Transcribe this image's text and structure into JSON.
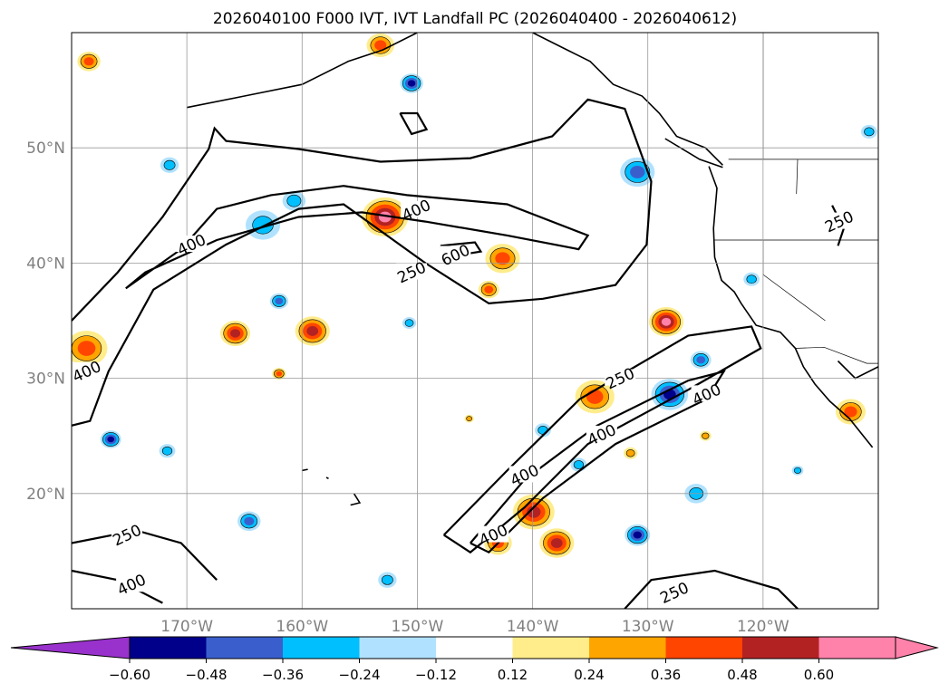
{
  "chart_data": {
    "type": "heatmap",
    "title": "2026040100 F000 IVT, IVT Landfall PC (2026040400 - 2026040612)",
    "xlim": [
      -180,
      -110
    ],
    "ylim": [
      10,
      60
    ],
    "x_ticks": [
      {
        "v": -170,
        "label": "170°W"
      },
      {
        "v": -160,
        "label": "160°W"
      },
      {
        "v": -150,
        "label": "150°W"
      },
      {
        "v": -140,
        "label": "140°W"
      },
      {
        "v": -130,
        "label": "130°W"
      },
      {
        "v": -120,
        "label": "120°W"
      }
    ],
    "y_ticks": [
      {
        "v": 50,
        "label": "50°N"
      },
      {
        "v": 40,
        "label": "40°N"
      },
      {
        "v": 30,
        "label": "30°N"
      },
      {
        "v": 20,
        "label": "20°N"
      }
    ],
    "grid": true,
    "colorbar": {
      "levels": [
        "-0.60",
        "-0.48",
        "-0.36",
        "-0.24",
        "-0.12",
        "0.12",
        "0.24",
        "0.36",
        "0.48",
        "0.60"
      ],
      "colors": [
        "#9932cc",
        "#00008b",
        "#3a5fcd",
        "#00bfff",
        "#b0e2ff",
        "#ffffff",
        "#ffec8b",
        "#ffa500",
        "#ff4500",
        "#b22222",
        "#ff82ab"
      ]
    },
    "pc_blobs": [
      {
        "lon": -165.8,
        "lat": 33.9,
        "v": 0.5,
        "r": 1.3
      },
      {
        "lon": -159.1,
        "lat": 34.1,
        "v": 0.5,
        "r": 1.5
      },
      {
        "lon": -152.8,
        "lat": 44,
        "v": 0.6,
        "r": 2
      },
      {
        "lon": -142.6,
        "lat": 40.4,
        "v": 0.45,
        "r": 1.5
      },
      {
        "lon": -143.8,
        "lat": 37.7,
        "v": 0.4,
        "r": 0.9
      },
      {
        "lon": -178.7,
        "lat": 32.6,
        "v": 0.45,
        "r": 1.8
      },
      {
        "lon": -128.4,
        "lat": 34.9,
        "v": 0.6,
        "r": 1.5
      },
      {
        "lon": -134.6,
        "lat": 28.4,
        "v": 0.45,
        "r": 1.7
      },
      {
        "lon": -139.9,
        "lat": 18.4,
        "v": 0.5,
        "r": 1.8
      },
      {
        "lon": -137.9,
        "lat": 15.7,
        "v": 0.5,
        "r": 1.5
      },
      {
        "lon": -143,
        "lat": 15.7,
        "v": 0.4,
        "r": 1.2
      },
      {
        "lon": -112.4,
        "lat": 27.1,
        "v": 0.4,
        "r": 1.3
      },
      {
        "lon": -178.5,
        "lat": 57.5,
        "v": 0.4,
        "r": 1
      },
      {
        "lon": -153.2,
        "lat": 58.9,
        "v": 0.4,
        "r": 1.2
      },
      {
        "lon": -162,
        "lat": 30.4,
        "v": 0.4,
        "r": 0.6
      },
      {
        "lon": -145.5,
        "lat": 26.5,
        "v": 0.3,
        "r": 0.4
      },
      {
        "lon": -125,
        "lat": 25,
        "v": 0.35,
        "r": 0.5
      },
      {
        "lon": -131.5,
        "lat": 23.5,
        "v": 0.35,
        "r": 0.6
      },
      {
        "lon": -150.5,
        "lat": 55.6,
        "v": -0.55,
        "r": 1
      },
      {
        "lon": -130.9,
        "lat": 47.9,
        "v": -0.4,
        "r": 1.5
      },
      {
        "lon": -128.1,
        "lat": 28.6,
        "v": -0.5,
        "r": 1.6
      },
      {
        "lon": -130.9,
        "lat": 16.4,
        "v": -0.5,
        "r": 1.1
      },
      {
        "lon": -176.6,
        "lat": 24.7,
        "v": -0.5,
        "r": 0.9
      },
      {
        "lon": -162,
        "lat": 36.7,
        "v": -0.4,
        "r": 0.8
      },
      {
        "lon": -163.4,
        "lat": 43.3,
        "v": -0.35,
        "r": 1.5
      },
      {
        "lon": -164.6,
        "lat": 17.6,
        "v": -0.4,
        "r": 1
      },
      {
        "lon": -150.7,
        "lat": 34.8,
        "v": -0.3,
        "r": 0.6
      },
      {
        "lon": -171.7,
        "lat": 23.7,
        "v": -0.35,
        "r": 0.7
      },
      {
        "lon": -125.4,
        "lat": 31.6,
        "v": -0.4,
        "r": 0.9
      },
      {
        "lon": -121,
        "lat": 38.6,
        "v": -0.3,
        "r": 0.7
      },
      {
        "lon": -110.8,
        "lat": 51.4,
        "v": -0.3,
        "r": 0.7
      },
      {
        "lon": -152.6,
        "lat": 12.5,
        "v": -0.3,
        "r": 0.8
      },
      {
        "lon": -160.7,
        "lat": 45.4,
        "v": -0.25,
        "r": 1
      },
      {
        "lon": -125.8,
        "lat": 20,
        "v": -0.3,
        "r": 1
      },
      {
        "lon": -139.1,
        "lat": 25.5,
        "v": -0.3,
        "r": 0.7
      },
      {
        "lon": -171.5,
        "lat": 48.5,
        "v": -0.3,
        "r": 0.8
      },
      {
        "lon": -136,
        "lat": 22.5,
        "v": -0.35,
        "r": 0.7
      },
      {
        "lon": -117,
        "lat": 22,
        "v": -0.3,
        "r": 0.5
      }
    ],
    "ivt_contours": [
      {
        "level": 250,
        "pts": [
          [
            -180,
            35
          ],
          [
            -176,
            39.2
          ],
          [
            -172.1,
            44
          ],
          [
            -168.1,
            49.9
          ],
          [
            -167.6,
            51.7
          ],
          [
            -166.6,
            50.6
          ],
          [
            -160.3,
            49.9
          ],
          [
            -153.2,
            48.8
          ],
          [
            -145.4,
            49.1
          ],
          [
            -138.3,
            51
          ],
          [
            -135.2,
            54.2
          ],
          [
            -132,
            53.4
          ],
          [
            -129.7,
            47.1
          ],
          [
            -130.1,
            41.6
          ],
          [
            -132.8,
            38.1
          ],
          [
            -139.1,
            36.9
          ],
          [
            -143.8,
            36.5
          ],
          [
            -149.3,
            40
          ],
          [
            -156.4,
            45.1
          ],
          [
            -160.3,
            44.7
          ],
          [
            -166.6,
            41.6
          ],
          [
            -172.9,
            37.7
          ],
          [
            -176.8,
            30.6
          ],
          [
            -178.4,
            26.3
          ],
          [
            -180,
            25.9
          ]
        ]
      },
      {
        "level": 400,
        "pts": [
          [
            -175.3,
            37.8
          ],
          [
            -170.5,
            41.2
          ],
          [
            -167.4,
            44.7
          ],
          [
            -162.7,
            45.9
          ],
          [
            -156.4,
            46.7
          ],
          [
            -150.9,
            45.9
          ],
          [
            -142.2,
            45.1
          ],
          [
            -135.2,
            42.4
          ],
          [
            -136,
            41.2
          ],
          [
            -142.2,
            42.4
          ],
          [
            -149.3,
            43.6
          ],
          [
            -154.8,
            44.4
          ],
          [
            -160.3,
            44
          ],
          [
            -167.4,
            42
          ],
          [
            -173.6,
            39.2
          ],
          [
            -175.3,
            37.8
          ]
        ]
      },
      {
        "level": 600,
        "pts": [
          [
            -148,
            41.5
          ],
          [
            -145,
            41.8
          ],
          [
            -144.5,
            41
          ],
          [
            -147,
            40.6
          ],
          [
            -148,
            41.5
          ]
        ]
      },
      {
        "level": 250,
        "pts": [
          [
            -147.7,
            16.4
          ],
          [
            -142.2,
            22
          ],
          [
            -135.9,
            28.2
          ],
          [
            -126.5,
            33.7
          ],
          [
            -121,
            34.5
          ],
          [
            -120.2,
            32.6
          ],
          [
            -126.5,
            29
          ],
          [
            -135.2,
            24.3
          ],
          [
            -140.7,
            18.8
          ],
          [
            -145.4,
            14.9
          ],
          [
            -147.7,
            16.4
          ]
        ]
      },
      {
        "level": 400,
        "pts": [
          [
            -145.4,
            15.7
          ],
          [
            -140.7,
            21.2
          ],
          [
            -134.4,
            25.9
          ],
          [
            -126.5,
            29.8
          ],
          [
            -123.4,
            30.6
          ],
          [
            -124.9,
            28.2
          ],
          [
            -132.8,
            24.3
          ],
          [
            -139.1,
            19.6
          ],
          [
            -143.8,
            14.9
          ],
          [
            -145.4,
            15.7
          ]
        ]
      },
      {
        "level": 250,
        "pts": [
          [
            -180,
            15.7
          ],
          [
            -174.4,
            16.8
          ],
          [
            -170.5,
            15.7
          ],
          [
            -167.4,
            12.5
          ]
        ]
      },
      {
        "level": 400,
        "pts": [
          [
            -180,
            13.3
          ],
          [
            -176,
            12.5
          ],
          [
            -172.1,
            10.5
          ]
        ]
      },
      {
        "level": 250,
        "pts": [
          [
            -132,
            10
          ],
          [
            -129.7,
            12.5
          ],
          [
            -124.2,
            13.3
          ],
          [
            -118.7,
            11.7
          ],
          [
            -117,
            10
          ]
        ]
      },
      {
        "level": 250,
        "pts": [
          [
            -114,
            45
          ],
          [
            -113,
            43
          ],
          [
            -113.5,
            41.5
          ]
        ]
      },
      {
        "level": 250,
        "pts": [
          [
            -151.5,
            53
          ],
          [
            -150.5,
            51.2
          ],
          [
            -149.2,
            51.6
          ],
          [
            -150,
            53
          ],
          [
            -151.5,
            53
          ]
        ]
      }
    ],
    "contour_labels": [
      {
        "lon": -150.1,
        "lat": 44.6,
        "text": "400"
      },
      {
        "lon": -146.7,
        "lat": 40.7,
        "text": "600"
      },
      {
        "lon": -150.5,
        "lat": 39.2,
        "text": "250"
      },
      {
        "lon": -169.6,
        "lat": 41.6,
        "text": "400"
      },
      {
        "lon": -178.7,
        "lat": 30.6,
        "text": "400"
      },
      {
        "lon": -132.4,
        "lat": 30,
        "text": "250"
      },
      {
        "lon": -124.9,
        "lat": 28.6,
        "text": "400"
      },
      {
        "lon": -134,
        "lat": 25.1,
        "text": "400"
      },
      {
        "lon": -140.7,
        "lat": 21.6,
        "text": "400"
      },
      {
        "lon": -143.4,
        "lat": 16.4,
        "text": "400"
      },
      {
        "lon": -175.2,
        "lat": 16.4,
        "text": "250"
      },
      {
        "lon": -174.8,
        "lat": 12.1,
        "text": "400"
      },
      {
        "lon": -127.7,
        "lat": 11.4,
        "text": "250"
      },
      {
        "lon": -113.4,
        "lat": 43.6,
        "text": "250"
      }
    ],
    "coastlines": [
      [
        [
          -124.7,
          48.4
        ],
        [
          -124,
          46.5
        ],
        [
          -124.3,
          43
        ],
        [
          -124.2,
          40.5
        ],
        [
          -123.6,
          38.5
        ],
        [
          -122.5,
          37.5
        ],
        [
          -121.9,
          36.5
        ],
        [
          -120.6,
          34.6
        ],
        [
          -118.5,
          34
        ],
        [
          -117.2,
          32.6
        ],
        [
          -116.5,
          31
        ],
        [
          -115.5,
          29.5
        ],
        [
          -114.2,
          28
        ],
        [
          -112.5,
          26.5
        ],
        [
          -110.5,
          24
        ]
      ],
      [
        [
          -110,
          31
        ],
        [
          -112,
          30
        ],
        [
          -113.5,
          31.5
        ]
      ],
      [
        [
          -170,
          53.5
        ],
        [
          -165,
          54.5
        ],
        [
          -160,
          55.5
        ],
        [
          -156,
          57.5
        ],
        [
          -153,
          58.5
        ],
        [
          -150,
          60
        ]
      ],
      [
        [
          -140,
          60
        ],
        [
          -137,
          58.5
        ],
        [
          -135,
          57.5
        ],
        [
          -133,
          55.5
        ],
        [
          -130.5,
          54.5
        ],
        [
          -129,
          53
        ],
        [
          -127.5,
          51
        ],
        [
          -125,
          50
        ],
        [
          -123.5,
          48.5
        ]
      ],
      [
        [
          -128.5,
          50.8
        ],
        [
          -125.5,
          49
        ],
        [
          -123.5,
          48.3
        ]
      ],
      [
        [
          -155.5,
          20
        ],
        [
          -155,
          19.2
        ],
        [
          -155.8,
          19
        ]
      ],
      [
        [
          -160,
          22
        ],
        [
          -159.5,
          22.1
        ]
      ],
      [
        [
          -157.9,
          21.4
        ],
        [
          -157.7,
          21.3
        ]
      ]
    ],
    "borders": [
      [
        [
          -123,
          49
        ],
        [
          -110,
          49
        ]
      ],
      [
        [
          -124.2,
          42
        ],
        [
          -110,
          42
        ]
      ],
      [
        [
          -120,
          42
        ],
        [
          -120,
          39
        ],
        [
          -114.6,
          35
        ]
      ],
      [
        [
          -117.1,
          46
        ],
        [
          -117,
          49
        ]
      ],
      [
        [
          -117.2,
          32.6
        ],
        [
          -114.7,
          32.7
        ],
        [
          -111,
          31.3
        ],
        [
          -110,
          31.3
        ]
      ],
      [
        [
          -120,
          49
        ],
        [
          -120,
          60
        ]
      ],
      [
        [
          -141,
          60
        ],
        [
          -141,
          60
        ]
      ]
    ]
  }
}
